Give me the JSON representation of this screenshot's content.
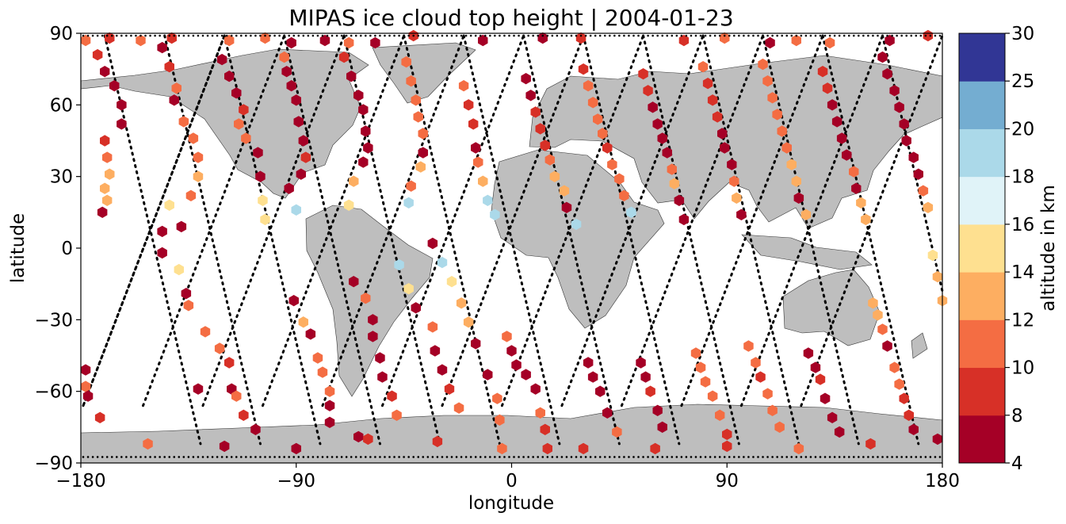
{
  "chart_data": {
    "type": "scatter",
    "title": "MIPAS ice cloud top height | 2004-01-23",
    "xlabel": "longitude",
    "ylabel": "latitude",
    "xlim": [
      -180,
      180
    ],
    "ylim": [
      -90,
      90
    ],
    "xticks": [
      -180,
      -90,
      0,
      90,
      180
    ],
    "yticks": [
      -90,
      -60,
      -30,
      0,
      30,
      60,
      90
    ],
    "xtick_labels": [
      "−180",
      "−90",
      "0",
      "90",
      "180"
    ],
    "ytick_labels": [
      "−90",
      "−60",
      "−30",
      "0",
      "30",
      "60",
      "90"
    ],
    "grid": false,
    "land_color": "#bebebe",
    "ocean_color": "#ffffff",
    "colorbar": {
      "label": "altitude in km",
      "tick_labels": [
        "4",
        "8",
        "10",
        "12",
        "14",
        "16",
        "18",
        "20",
        "25",
        "30"
      ],
      "bins": [
        {
          "from": 4,
          "to": 8,
          "color": "#a50026"
        },
        {
          "from": 8,
          "to": 10,
          "color": "#d73027"
        },
        {
          "from": 10,
          "to": 12,
          "color": "#f46d43"
        },
        {
          "from": 12,
          "to": 14,
          "color": "#fdae61"
        },
        {
          "from": 14,
          "to": 16,
          "color": "#fee090"
        },
        {
          "from": 16,
          "to": 18,
          "color": "#e0f3f8"
        },
        {
          "from": 18,
          "to": 20,
          "color": "#abd9e9"
        },
        {
          "from": 20,
          "to": 25,
          "color": "#74add1"
        },
        {
          "from": 25,
          "to": 30,
          "color": "#313695"
        }
      ]
    },
    "orbit_tracks": [
      {
        "x0": -179,
        "y0": -66,
        "x1": -120,
        "y1": 89
      },
      {
        "x0": -154,
        "y0": -66,
        "x1": -95,
        "y1": 89
      },
      {
        "x0": -129,
        "y0": -66,
        "x1": -70,
        "y1": 89
      },
      {
        "x0": -104,
        "y0": -66,
        "x1": -45,
        "y1": 89
      },
      {
        "x0": -79,
        "y0": -66,
        "x1": -20,
        "y1": 89
      },
      {
        "x0": -54,
        "y0": -66,
        "x1": 5,
        "y1": 89
      },
      {
        "x0": -29,
        "y0": -66,
        "x1": 30,
        "y1": 89
      },
      {
        "x0": -4,
        "y0": -66,
        "x1": 55,
        "y1": 89
      },
      {
        "x0": 21,
        "y0": -66,
        "x1": 80,
        "y1": 89
      },
      {
        "x0": 46,
        "y0": -66,
        "x1": 105,
        "y1": 89
      },
      {
        "x0": 71,
        "y0": -66,
        "x1": 130,
        "y1": 89
      },
      {
        "x0": 96,
        "y0": -66,
        "x1": 155,
        "y1": 89
      },
      {
        "x0": 121,
        "y0": -66,
        "x1": 180,
        "y1": 89
      },
      {
        "x0": -120,
        "y0": 89,
        "x1": -179,
        "y1": -66
      },
      {
        "x0": -170,
        "y0": 89,
        "x1": -130,
        "y1": -82
      },
      {
        "x0": -145,
        "y0": 89,
        "x1": -105,
        "y1": -82
      },
      {
        "x0": -120,
        "y0": 89,
        "x1": -80,
        "y1": -82
      },
      {
        "x0": -95,
        "y0": 89,
        "x1": -55,
        "y1": -82
      },
      {
        "x0": -70,
        "y0": 89,
        "x1": -30,
        "y1": -82
      },
      {
        "x0": -45,
        "y0": 89,
        "x1": -5,
        "y1": -82
      },
      {
        "x0": -20,
        "y0": 89,
        "x1": 20,
        "y1": -82
      },
      {
        "x0": 5,
        "y0": 89,
        "x1": 45,
        "y1": -82
      },
      {
        "x0": 30,
        "y0": 89,
        "x1": 70,
        "y1": -82
      },
      {
        "x0": 55,
        "y0": 89,
        "x1": 95,
        "y1": -82
      },
      {
        "x0": 80,
        "y0": 89,
        "x1": 120,
        "y1": -82
      },
      {
        "x0": 105,
        "y0": 89,
        "x1": 145,
        "y1": -82
      },
      {
        "x0": 130,
        "y0": 89,
        "x1": 170,
        "y1": -82
      },
      {
        "x0": 155,
        "y0": 89,
        "x1": 180,
        "y1": -18
      }
    ],
    "series": [
      {
        "values": [
          [
            -178,
            87
          ],
          [
            -168,
            88
          ],
          [
            -155,
            87
          ],
          [
            -142,
            88
          ],
          [
            -118,
            87
          ],
          [
            -103,
            88
          ],
          [
            -92,
            86
          ],
          [
            -78,
            87
          ],
          [
            -57,
            86
          ],
          [
            -41,
            89
          ],
          [
            -12,
            87
          ],
          [
            13,
            88
          ],
          [
            29,
            88
          ],
          [
            72,
            87
          ],
          [
            89,
            88
          ],
          [
            108,
            86
          ],
          [
            119,
            87
          ],
          [
            133,
            86
          ],
          [
            158,
            87
          ],
          [
            174,
            89
          ],
          [
            -173,
            81
          ],
          [
            -170,
            74
          ],
          [
            -166,
            68
          ],
          [
            -163,
            60
          ],
          [
            -163,
            52
          ],
          [
            -170,
            45
          ],
          [
            -169,
            38
          ],
          [
            -168,
            31
          ],
          [
            -170,
            25
          ],
          [
            -169,
            20
          ],
          [
            -171,
            15
          ],
          [
            -146,
            84
          ],
          [
            -143,
            76
          ],
          [
            -140,
            67
          ],
          [
            -141,
            62
          ],
          [
            -137,
            53
          ],
          [
            -133,
            46
          ],
          [
            -131,
            38
          ],
          [
            -131,
            30
          ],
          [
            -134,
            22
          ],
          [
            -143,
            18
          ],
          [
            -138,
            9
          ],
          [
            -146,
            7
          ],
          [
            -146,
            -2
          ],
          [
            -139,
            -9
          ],
          [
            -136,
            -19
          ],
          [
            -135,
            -24
          ],
          [
            -128,
            -35
          ],
          [
            -122,
            -42
          ],
          [
            -118,
            -48
          ],
          [
            -117,
            -59
          ],
          [
            -115,
            -62
          ],
          [
            -112,
            -70
          ],
          [
            -107,
            -76
          ],
          [
            -121,
            79
          ],
          [
            -118,
            72
          ],
          [
            -115,
            65
          ],
          [
            -112,
            58
          ],
          [
            -114,
            52
          ],
          [
            -111,
            46
          ],
          [
            -106,
            40
          ],
          [
            -105,
            30
          ],
          [
            -104,
            20
          ],
          [
            -103,
            12
          ],
          [
            -91,
            -22
          ],
          [
            -87,
            -31
          ],
          [
            -84,
            -36
          ],
          [
            -81,
            -46
          ],
          [
            -79,
            -52
          ],
          [
            -76,
            -60
          ],
          [
            -76,
            -66
          ],
          [
            -76,
            -73
          ],
          [
            -64,
            -79
          ],
          [
            -95,
            80
          ],
          [
            -94,
            74
          ],
          [
            -92,
            68
          ],
          [
            -90,
            62
          ],
          [
            -89,
            53
          ],
          [
            -87,
            45
          ],
          [
            -86,
            38
          ],
          [
            -88,
            31
          ],
          [
            -93,
            25
          ],
          [
            -90,
            16
          ],
          [
            -66,
            -14
          ],
          [
            -61,
            -21
          ],
          [
            -58,
            -30
          ],
          [
            -58,
            -37
          ],
          [
            -55,
            -46
          ],
          [
            -54,
            -54
          ],
          [
            -50,
            -62
          ],
          [
            -48,
            -70
          ],
          [
            -68,
            86
          ],
          [
            -70,
            80
          ],
          [
            -67,
            72
          ],
          [
            -64,
            64
          ],
          [
            -62,
            58
          ],
          [
            -61,
            49
          ],
          [
            -60,
            42
          ],
          [
            -62,
            36
          ],
          [
            -66,
            28
          ],
          [
            -68,
            18
          ],
          [
            -47,
            -7
          ],
          [
            -43,
            -17
          ],
          [
            -40,
            -25
          ],
          [
            -33,
            -33
          ],
          [
            -32,
            -43
          ],
          [
            -29,
            -51
          ],
          [
            -26,
            -59
          ],
          [
            -22,
            -67
          ],
          [
            -44,
            78
          ],
          [
            -42,
            70
          ],
          [
            -40,
            62
          ],
          [
            -39,
            55
          ],
          [
            -37,
            48
          ],
          [
            -37,
            40
          ],
          [
            -38,
            34
          ],
          [
            -42,
            26
          ],
          [
            -43,
            19
          ],
          [
            -33,
            2
          ],
          [
            -29,
            -6
          ],
          [
            -25,
            -14
          ],
          [
            -21,
            -23
          ],
          [
            -18,
            -31
          ],
          [
            -15,
            -40
          ],
          [
            -10,
            -53
          ],
          [
            -6,
            -63
          ],
          [
            -5,
            -72
          ],
          [
            -20,
            68
          ],
          [
            -18,
            60
          ],
          [
            -16,
            52
          ],
          [
            -15,
            42
          ],
          [
            -14,
            36
          ],
          [
            -12,
            28
          ],
          [
            -10,
            20
          ],
          [
            -7,
            14
          ],
          [
            -2,
            -37
          ],
          [
            0,
            -43
          ],
          [
            2,
            -49
          ],
          [
            6,
            -53
          ],
          [
            10,
            -59
          ],
          [
            12,
            -69
          ],
          [
            14,
            -76
          ],
          [
            15,
            -84
          ],
          [
            6,
            71
          ],
          [
            8,
            64
          ],
          [
            10,
            57
          ],
          [
            12,
            50
          ],
          [
            14,
            43
          ],
          [
            16,
            37
          ],
          [
            18,
            30
          ],
          [
            22,
            24
          ],
          [
            23,
            17
          ],
          [
            27,
            10
          ],
          [
            32,
            -48
          ],
          [
            34,
            -54
          ],
          [
            37,
            -60
          ],
          [
            40,
            -69
          ],
          [
            44,
            -77
          ],
          [
            30,
            75
          ],
          [
            32,
            68
          ],
          [
            34,
            61
          ],
          [
            36,
            54
          ],
          [
            38,
            48
          ],
          [
            40,
            42
          ],
          [
            42,
            35
          ],
          [
            45,
            29
          ],
          [
            47,
            22
          ],
          [
            50,
            15
          ],
          [
            54,
            -48
          ],
          [
            56,
            -54
          ],
          [
            58,
            -60
          ],
          [
            61,
            -68
          ],
          [
            63,
            -75
          ],
          [
            55,
            73
          ],
          [
            57,
            66
          ],
          [
            59,
            59
          ],
          [
            61,
            52
          ],
          [
            63,
            46
          ],
          [
            65,
            40
          ],
          [
            67,
            33
          ],
          [
            68,
            27
          ],
          [
            70,
            20
          ],
          [
            72,
            12
          ],
          [
            77,
            -44
          ],
          [
            79,
            -50
          ],
          [
            81,
            -56
          ],
          [
            84,
            -62
          ],
          [
            87,
            -70
          ],
          [
            90,
            -78
          ],
          [
            80,
            76
          ],
          [
            82,
            69
          ],
          [
            84,
            62
          ],
          [
            86,
            55
          ],
          [
            88,
            48
          ],
          [
            89,
            42
          ],
          [
            92,
            35
          ],
          [
            93,
            28
          ],
          [
            94,
            21
          ],
          [
            96,
            14
          ],
          [
            99,
            -41
          ],
          [
            102,
            -48
          ],
          [
            104,
            -54
          ],
          [
            107,
            -61
          ],
          [
            109,
            -68
          ],
          [
            112,
            -75
          ],
          [
            105,
            77
          ],
          [
            107,
            70
          ],
          [
            109,
            63
          ],
          [
            111,
            56
          ],
          [
            113,
            49
          ],
          [
            115,
            42
          ],
          [
            117,
            35
          ],
          [
            119,
            28
          ],
          [
            120,
            21
          ],
          [
            123,
            14
          ],
          [
            124,
            -44
          ],
          [
            127,
            -50
          ],
          [
            129,
            -55
          ],
          [
            131,
            -63
          ],
          [
            134,
            -71
          ],
          [
            137,
            -77
          ],
          [
            130,
            74
          ],
          [
            132,
            67
          ],
          [
            134,
            60
          ],
          [
            136,
            53
          ],
          [
            138,
            46
          ],
          [
            140,
            39
          ],
          [
            143,
            32
          ],
          [
            144,
            25
          ],
          [
            146,
            19
          ],
          [
            148,
            12
          ],
          [
            151,
            -23
          ],
          [
            153,
            -28
          ],
          [
            155,
            -34
          ],
          [
            157,
            -41
          ],
          [
            160,
            -50
          ],
          [
            162,
            -57
          ],
          [
            164,
            -63
          ],
          [
            166,
            -70
          ],
          [
            168,
            -76
          ],
          [
            155,
            80
          ],
          [
            157,
            73
          ],
          [
            160,
            66
          ],
          [
            162,
            59
          ],
          [
            164,
            52
          ],
          [
            165,
            45
          ],
          [
            168,
            38
          ],
          [
            170,
            31
          ],
          [
            172,
            24
          ],
          [
            174,
            17
          ],
          [
            176,
            -3
          ],
          [
            178,
            -12
          ],
          [
            180,
            -22
          ],
          [
            -178,
            -51
          ],
          [
            -178,
            -58
          ],
          [
            -177,
            -62
          ],
          [
            -172,
            -71
          ],
          [
            -131,
            -59
          ],
          [
            -152,
            -82
          ],
          [
            -120,
            -83
          ],
          [
            -90,
            -84
          ],
          [
            -60,
            -80
          ],
          [
            -31,
            -81
          ],
          [
            -4,
            -84
          ],
          [
            30,
            -84
          ],
          [
            60,
            -84
          ],
          [
            90,
            -83
          ],
          [
            120,
            -84
          ],
          [
            150,
            -82
          ],
          [
            178,
            -80
          ]
        ],
        "colors": "mixed"
      }
    ]
  }
}
